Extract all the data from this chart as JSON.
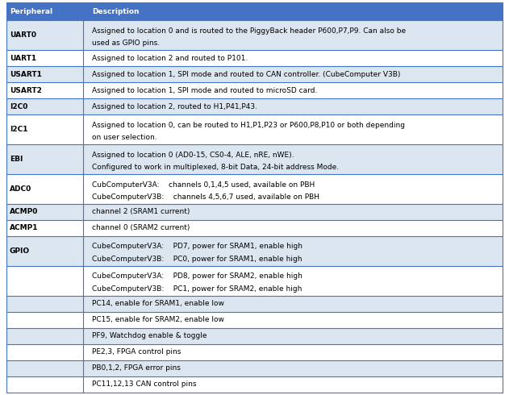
{
  "header": [
    "Peripheral",
    "Description"
  ],
  "header_bg": "#4472c4",
  "header_fg": "#ffffff",
  "row_bg_alt": "#dce6f1",
  "row_bg_white": "#ffffff",
  "border_color": "#4472c4",
  "text_color": "#000000",
  "col_split": 0.155,
  "font_size": 6.5,
  "rows": [
    {
      "peripheral": "UART0",
      "description": [
        "Assigned to location 0 and is routed to the PiggyBack header P600,P7,P9. Can also be",
        "used as GPIO pins."
      ],
      "shaded": true
    },
    {
      "peripheral": "UART1",
      "description": [
        "Assigned to location 2 and routed to P101."
      ],
      "shaded": false
    },
    {
      "peripheral": "USART1",
      "description": [
        "Assigned to location 1, SPI mode and routed to CAN controller. (CubeComputer V3B)"
      ],
      "shaded": true
    },
    {
      "peripheral": "USART2",
      "description": [
        "Assigned to location 1, SPI mode and routed to microSD card."
      ],
      "shaded": false
    },
    {
      "peripheral": "I2C0",
      "description": [
        "Assigned to location 2, routed to H1,P41,P43."
      ],
      "shaded": true
    },
    {
      "peripheral": "I2C1",
      "description": [
        "Assigned to location 0, can be routed to H1,P1,P23 or P600,P8,P10 or both depending",
        "on user selection."
      ],
      "shaded": false
    },
    {
      "peripheral": "EBI",
      "description": [
        "Assigned to location 0 (AD0-15, CS0-4, ALE, nRE, nWE).",
        "Configured to work in multiplexed, 8-bit Data, 24-bit address Mode."
      ],
      "shaded": true
    },
    {
      "peripheral": "ADC0",
      "description": [
        "CubComputerV3A:\tchannels 0,1,4,5 used, available on PBH",
        "CubeComputerV3B:\tchannels 4,5,6,7 used, available on PBH"
      ],
      "shaded": false
    },
    {
      "peripheral": "ACMP0",
      "description": [
        "channel 2 (SRAM1 current)"
      ],
      "shaded": true
    },
    {
      "peripheral": "ACMP1",
      "description": [
        "channel 0 (SRAM2 current)"
      ],
      "shaded": false
    },
    {
      "peripheral": "GPIO",
      "description": [
        "CubeComputerV3A:\tPD7, power for SRAM1, enable high",
        "CubeComputerV3B:\tPC0, power for SRAM1, enable high"
      ],
      "shaded": true
    },
    {
      "peripheral": "",
      "description": [
        "CubeComputerV3A:\tPD8, power for SRAM2, enable high",
        "CubeComputerV3B:\tPC1, power for SRAM2, enable high"
      ],
      "shaded": false
    },
    {
      "peripheral": "",
      "description": [
        "PC14, enable for SRAM1, enable low"
      ],
      "shaded": true
    },
    {
      "peripheral": "",
      "description": [
        "PC15, enable for SRAM2, enable low"
      ],
      "shaded": false
    },
    {
      "peripheral": "",
      "description": [
        "PF9, Watchdog enable & toggle"
      ],
      "shaded": true
    },
    {
      "peripheral": "",
      "description": [
        "PE2,3, FPGA control pins"
      ],
      "shaded": false
    },
    {
      "peripheral": "",
      "description": [
        "PB0,1,2, FPGA error pins"
      ],
      "shaded": true
    },
    {
      "peripheral": "",
      "description": [
        "PC11,12,13 CAN control pins"
      ],
      "shaded": false
    }
  ]
}
